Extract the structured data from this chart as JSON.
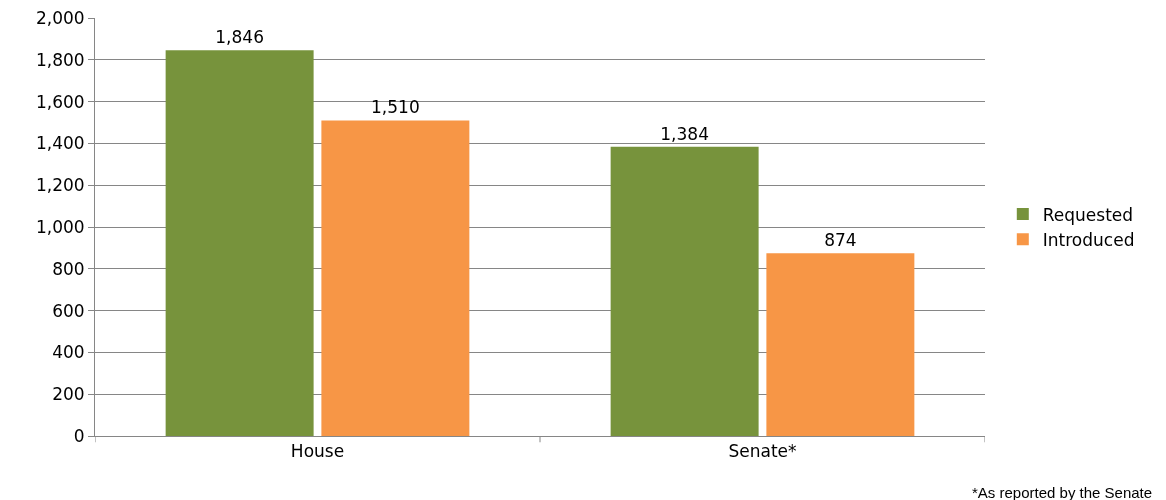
{
  "chart_data": {
    "type": "bar",
    "categories": [
      "House",
      "Senate*"
    ],
    "series": [
      {
        "name": "Requested",
        "color": "#77933c",
        "values": [
          1846,
          1384
        ],
        "value_labels": [
          "1,846",
          "1,384"
        ]
      },
      {
        "name": "Introduced",
        "color": "#f79646",
        "values": [
          1510,
          874
        ],
        "value_labels": [
          "1,510",
          "874"
        ]
      }
    ],
    "ylim": [
      0,
      2000
    ],
    "yticks": [
      {
        "value": 0,
        "label": "0"
      },
      {
        "value": 200,
        "label": "200"
      },
      {
        "value": 400,
        "label": "400"
      },
      {
        "value": 600,
        "label": "600"
      },
      {
        "value": 800,
        "label": "800"
      },
      {
        "value": 1000,
        "label": "1,000"
      },
      {
        "value": 1200,
        "label": "1,200"
      },
      {
        "value": 1400,
        "label": "1,400"
      },
      {
        "value": 1600,
        "label": "1,600"
      },
      {
        "value": 1800,
        "label": "1,800"
      },
      {
        "value": 2000,
        "label": "2,000"
      }
    ],
    "grid": "y",
    "legend": "right",
    "annotations": [
      "*As reported by the Senate"
    ]
  }
}
